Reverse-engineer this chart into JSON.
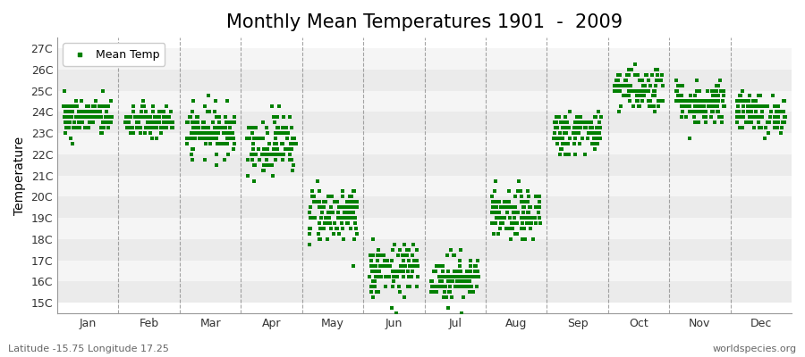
{
  "title": "Monthly Mean Temperatures 1901  -  2009",
  "ylabel": "Temperature",
  "xlabel_labels": [
    "Jan",
    "Feb",
    "Mar",
    "Apr",
    "May",
    "Jun",
    "Jul",
    "Aug",
    "Sep",
    "Oct",
    "Nov",
    "Dec"
  ],
  "ytick_labels": [
    "15C",
    "16C",
    "17C",
    "18C",
    "19C",
    "20C",
    "21C",
    "22C",
    "23C",
    "24C",
    "25C",
    "26C",
    "27C"
  ],
  "ytick_values": [
    15,
    16,
    17,
    18,
    19,
    20,
    21,
    22,
    23,
    24,
    25,
    26,
    27
  ],
  "ylim": [
    14.5,
    27.5
  ],
  "marker_color": "#008000",
  "marker": "s",
  "marker_size": 2.5,
  "background_color": "#ffffff",
  "band_color_dark": "#ebebeb",
  "band_color_light": "#f5f5f5",
  "grid_color": "#808080",
  "title_fontsize": 15,
  "axis_fontsize": 10,
  "tick_fontsize": 9,
  "footer_left": "Latitude -15.75 Longitude 17.25",
  "footer_right": "worldspecies.org",
  "legend_label": "Mean Temp",
  "mean_temps_by_month": [
    23.75,
    23.5,
    23.1,
    22.5,
    19.2,
    16.5,
    16.2,
    19.1,
    23.05,
    25.15,
    24.4,
    23.95
  ],
  "std_by_month": [
    0.45,
    0.4,
    0.55,
    0.7,
    0.7,
    0.65,
    0.55,
    0.6,
    0.5,
    0.55,
    0.55,
    0.45
  ],
  "n_years": 109
}
